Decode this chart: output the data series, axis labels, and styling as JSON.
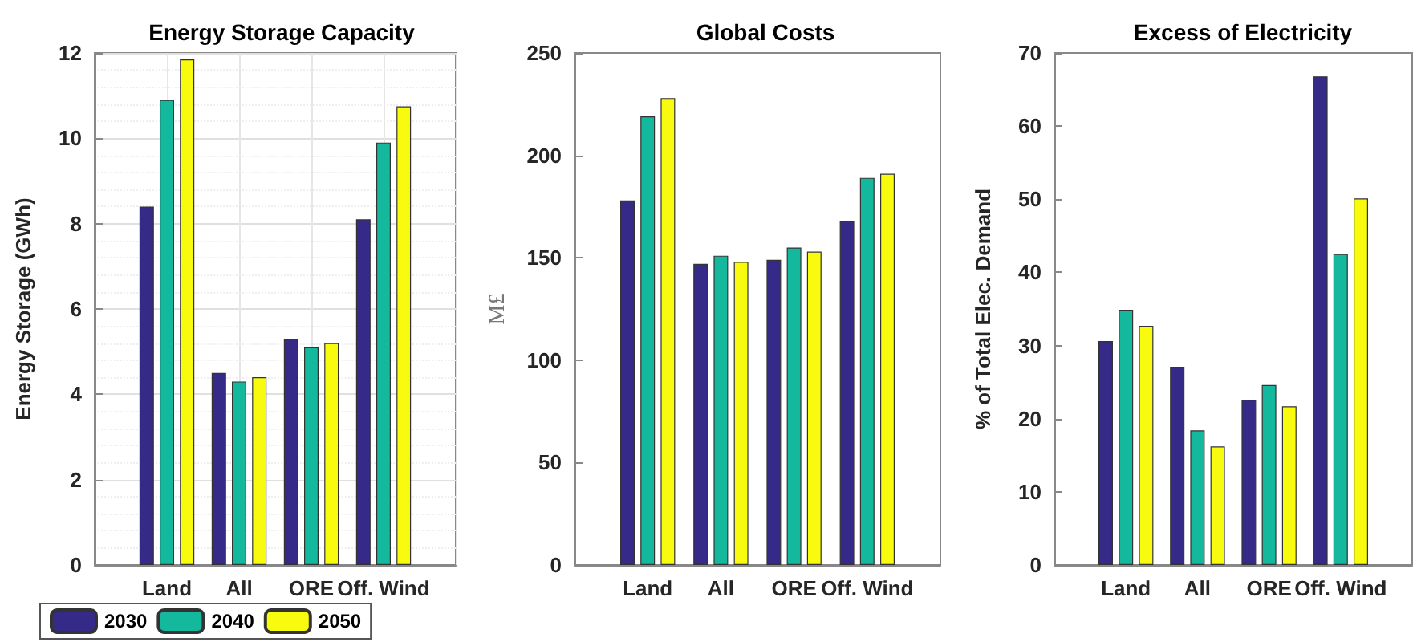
{
  "chart_data": [
    {
      "type": "bar",
      "title": "Energy Storage Capacity",
      "ylabel": "Energy Storage (GWh)",
      "categories": [
        "Land",
        "All",
        "ORE",
        "Off. Wind"
      ],
      "ylim": [
        0,
        12
      ],
      "yticks": [
        0,
        2,
        4,
        6,
        8,
        10,
        12
      ],
      "grid": true,
      "legend": "bottom",
      "series": [
        {
          "name": "2030",
          "color": "#352a87",
          "values": [
            8.4,
            4.5,
            5.3,
            8.1
          ]
        },
        {
          "name": "2040",
          "color": "#13b89d",
          "values": [
            10.9,
            4.3,
            5.1,
            9.9
          ]
        },
        {
          "name": "2050",
          "color": "#f9fb0e",
          "values": [
            11.85,
            4.4,
            5.2,
            10.75
          ]
        }
      ]
    },
    {
      "type": "bar",
      "title": "Global Costs",
      "ylabel": "M£",
      "categories": [
        "Land",
        "All",
        "ORE",
        "Off. Wind"
      ],
      "ylim": [
        0,
        250
      ],
      "yticks": [
        0,
        50,
        100,
        150,
        200,
        250
      ],
      "grid": false,
      "series": [
        {
          "name": "2030",
          "color": "#352a87",
          "values": [
            178,
            147,
            149,
            168
          ]
        },
        {
          "name": "2040",
          "color": "#13b89d",
          "values": [
            219,
            151,
            155,
            189
          ]
        },
        {
          "name": "2050",
          "color": "#f9fb0e",
          "values": [
            228,
            148,
            153,
            191
          ]
        }
      ]
    },
    {
      "type": "bar",
      "title": "Excess of Electricity",
      "ylabel": "% of Total Elec. Demand",
      "categories": [
        "Land",
        "All",
        "ORE",
        "Off. Wind"
      ],
      "ylim": [
        0,
        70
      ],
      "yticks": [
        0,
        10,
        20,
        30,
        40,
        50,
        60,
        70
      ],
      "grid": false,
      "series": [
        {
          "name": "2030",
          "color": "#352a87",
          "values": [
            30.6,
            27.1,
            22.6,
            66.8
          ]
        },
        {
          "name": "2040",
          "color": "#13b89d",
          "values": [
            34.9,
            18.4,
            24.6,
            42.5
          ]
        },
        {
          "name": "2050",
          "color": "#f9fb0e",
          "values": [
            32.7,
            16.2,
            21.7,
            50.1
          ]
        }
      ]
    }
  ]
}
